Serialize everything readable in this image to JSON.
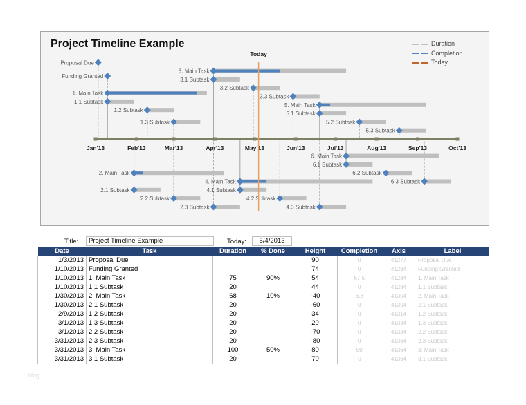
{
  "chart_data": {
    "type": "timeline",
    "title": "Project Timeline Example",
    "today_label": "Today",
    "today": "2013-05-04",
    "x_ticks": [
      "Jan'13",
      "Feb'13",
      "Mar'13",
      "Apr'13",
      "May'13",
      "Jun'13",
      "Jul'13",
      "Aug'13",
      "Sep'13",
      "Oct'13"
    ],
    "xlim": [
      "2013-01-01",
      "2013-10-01"
    ],
    "ylim": [
      -90,
      100
    ],
    "legend": [
      {
        "name": "Duration",
        "color": "#bfbfbf"
      },
      {
        "name": "Completion",
        "color": "#4f81bd"
      },
      {
        "name": "Today",
        "color": "#c0662a"
      }
    ],
    "legend_position": "top-right",
    "tasks": [
      {
        "label": "Proposal Due",
        "date": "2013-01-03",
        "height": 90,
        "duration": 0,
        "done": 0
      },
      {
        "label": "Funding Granted",
        "date": "2013-01-10",
        "height": 74,
        "duration": 0,
        "done": 0
      },
      {
        "label": "1. Main Task",
        "date": "2013-01-10",
        "height": 54,
        "duration": 75,
        "done": 0.9
      },
      {
        "label": "1.1 Subtask",
        "date": "2013-01-10",
        "height": 44,
        "duration": 20,
        "done": 0
      },
      {
        "label": "2. Main Task",
        "date": "2013-01-30",
        "height": -40,
        "duration": 68,
        "done": 0.1
      },
      {
        "label": "2.1 Subtask",
        "date": "2013-01-30",
        "height": -60,
        "duration": 20,
        "done": 0
      },
      {
        "label": "1.2 Subtask",
        "date": "2013-02-09",
        "height": 34,
        "duration": 20,
        "done": 0
      },
      {
        "label": "1.3 Subtask",
        "date": "2013-03-01",
        "height": 20,
        "duration": 20,
        "done": 0
      },
      {
        "label": "2.2 Subtask",
        "date": "2013-03-01",
        "height": -70,
        "duration": 20,
        "done": 0
      },
      {
        "label": "2.3 Subtask",
        "date": "2013-03-31",
        "height": -80,
        "duration": 20,
        "done": 0
      },
      {
        "label": "3. Main Task",
        "date": "2013-03-31",
        "height": 80,
        "duration": 100,
        "done": 0.5
      },
      {
        "label": "3.1 Subtask",
        "date": "2013-03-31",
        "height": 70,
        "duration": 20,
        "done": 0
      },
      {
        "label": "3.2 Subtask",
        "date": "2013-04-30",
        "height": 60,
        "duration": 20,
        "done": 0
      },
      {
        "label": "3.3 Subtask",
        "date": "2013-05-30",
        "height": 50,
        "duration": 20,
        "done": 0
      },
      {
        "label": "4. Main Task",
        "date": "2013-04-20",
        "height": -50,
        "duration": 100,
        "done": 0.2
      },
      {
        "label": "4.1 Subtask",
        "date": "2013-04-20",
        "height": -60,
        "duration": 20,
        "done": 0
      },
      {
        "label": "4.2 Subtask",
        "date": "2013-05-20",
        "height": -70,
        "duration": 20,
        "done": 0
      },
      {
        "label": "4.3 Subtask",
        "date": "2013-06-19",
        "height": -80,
        "duration": 20,
        "done": 0
      },
      {
        "label": "5. Main Task",
        "date": "2013-06-19",
        "height": 40,
        "duration": 80,
        "done": 0.1
      },
      {
        "label": "5.1 Subtask",
        "date": "2013-06-19",
        "height": 30,
        "duration": 20,
        "done": 0
      },
      {
        "label": "5.2 Subtask",
        "date": "2013-07-19",
        "height": 20,
        "duration": 20,
        "done": 0
      },
      {
        "label": "5.3 Subtask",
        "date": "2013-08-18",
        "height": 10,
        "duration": 20,
        "done": 0
      },
      {
        "label": "6. Main Task",
        "date": "2013-07-09",
        "height": -20,
        "duration": 70,
        "done": 0
      },
      {
        "label": "6.1 Subtask",
        "date": "2013-07-09",
        "height": -30,
        "duration": 20,
        "done": 0
      },
      {
        "label": "6.2 Subtask",
        "date": "2013-08-08",
        "height": -40,
        "duration": 20,
        "done": 0
      },
      {
        "label": "6.3 Subtask",
        "date": "2013-09-06",
        "height": -50,
        "duration": 20,
        "done": 0
      }
    ]
  },
  "inputs": {
    "title_label": "Title:",
    "title_value": "Project Timeline Example",
    "today_label": "Today:",
    "today_value": "5/4/2013"
  },
  "table": {
    "headers": [
      "Date",
      "Task",
      "Duration",
      "% Done",
      "Height",
      "Completion",
      "Axis",
      "Label"
    ],
    "rows": [
      [
        "1/3/2013",
        "Proposal Due",
        "",
        "",
        "90",
        "0",
        "41277",
        "Proposal Due"
      ],
      [
        "1/10/2013",
        "Funding Granted",
        "",
        "",
        "74",
        "0",
        "41284",
        "Funding Granted"
      ],
      [
        "1/10/2013",
        "1. Main Task",
        "75",
        "90%",
        "54",
        "67.5",
        "41284",
        "1. Main Task"
      ],
      [
        "1/10/2013",
        "1.1 Subtask",
        "20",
        "",
        "44",
        "0",
        "41284",
        "1.1 Subtask"
      ],
      [
        "1/30/2013",
        "2. Main Task",
        "68",
        "10%",
        "-40",
        "6.8",
        "41304",
        "2. Main Task"
      ],
      [
        "1/30/2013",
        "2.1 Subtask",
        "20",
        "",
        "-60",
        "0",
        "41304",
        "2.1 Subtask"
      ],
      [
        "2/9/2013",
        "1.2 Subtask",
        "20",
        "",
        "34",
        "0",
        "41314",
        "1.2 Subtask"
      ],
      [
        "3/1/2013",
        "1.3 Subtask",
        "20",
        "",
        "20",
        "0",
        "41334",
        "1.3 Subtask"
      ],
      [
        "3/1/2013",
        "2.2 Subtask",
        "20",
        "",
        "-70",
        "0",
        "41334",
        "2.2 Subtask"
      ],
      [
        "3/31/2013",
        "2.3 Subtask",
        "20",
        "",
        "-80",
        "0",
        "41364",
        "2.3 Subtask"
      ],
      [
        "3/31/2013",
        "3. Main Task",
        "100",
        "50%",
        "80",
        "50",
        "41364",
        "3. Main Task"
      ],
      [
        "3/31/2013",
        "3.1 Subtask",
        "20",
        "",
        "70",
        "0",
        "41364",
        "3.1 Subtask"
      ]
    ]
  },
  "watermark": "blog"
}
